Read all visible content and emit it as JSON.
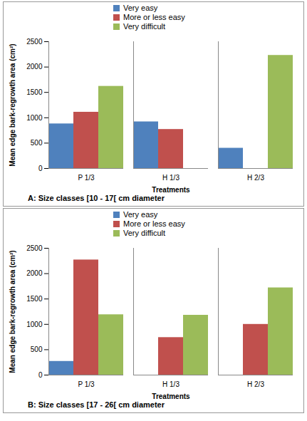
{
  "chart_data": [
    {
      "type": "bar",
      "title": "A: Size classes [10 - 17[ cm diameter",
      "x_label": "Treatments",
      "y_label": "Mean edge bark-regrowth area (cm²)",
      "categories": [
        "P 1/3",
        "H 1/3",
        "H 2/3"
      ],
      "series": [
        {
          "name": "Very easy",
          "color": "#4f81bd",
          "values": [
            880,
            920,
            400
          ]
        },
        {
          "name": "More or less easy",
          "color": "#c0504d",
          "values": [
            1110,
            770,
            null
          ]
        },
        {
          "name": "Very difficult",
          "color": "#9bbb59",
          "values": [
            1620,
            null,
            2230
          ]
        }
      ],
      "ylim": [
        0,
        2500
      ],
      "yticks": [
        0,
        500,
        1000,
        1500,
        2000,
        2500
      ],
      "grid": false,
      "legend": "top"
    },
    {
      "type": "bar",
      "title": "B: Size classes [17 - 26[ cm diameter",
      "x_label": "Treatments",
      "y_label": "Mean edge bark-regrowth area (cm²)",
      "categories": [
        "P 1/3",
        "H 1/3",
        "H 2/3"
      ],
      "series": [
        {
          "name": "Very easy",
          "color": "#4f81bd",
          "values": [
            270,
            null,
            null
          ]
        },
        {
          "name": "More or less easy",
          "color": "#c0504d",
          "values": [
            2270,
            740,
            1000
          ]
        },
        {
          "name": "Very difficult",
          "color": "#9bbb59",
          "values": [
            1190,
            1180,
            1720
          ]
        }
      ],
      "ylim": [
        0,
        2500
      ],
      "yticks": [
        0,
        500,
        1000,
        1500,
        2000,
        2500
      ],
      "grid": false,
      "legend": "top"
    }
  ]
}
